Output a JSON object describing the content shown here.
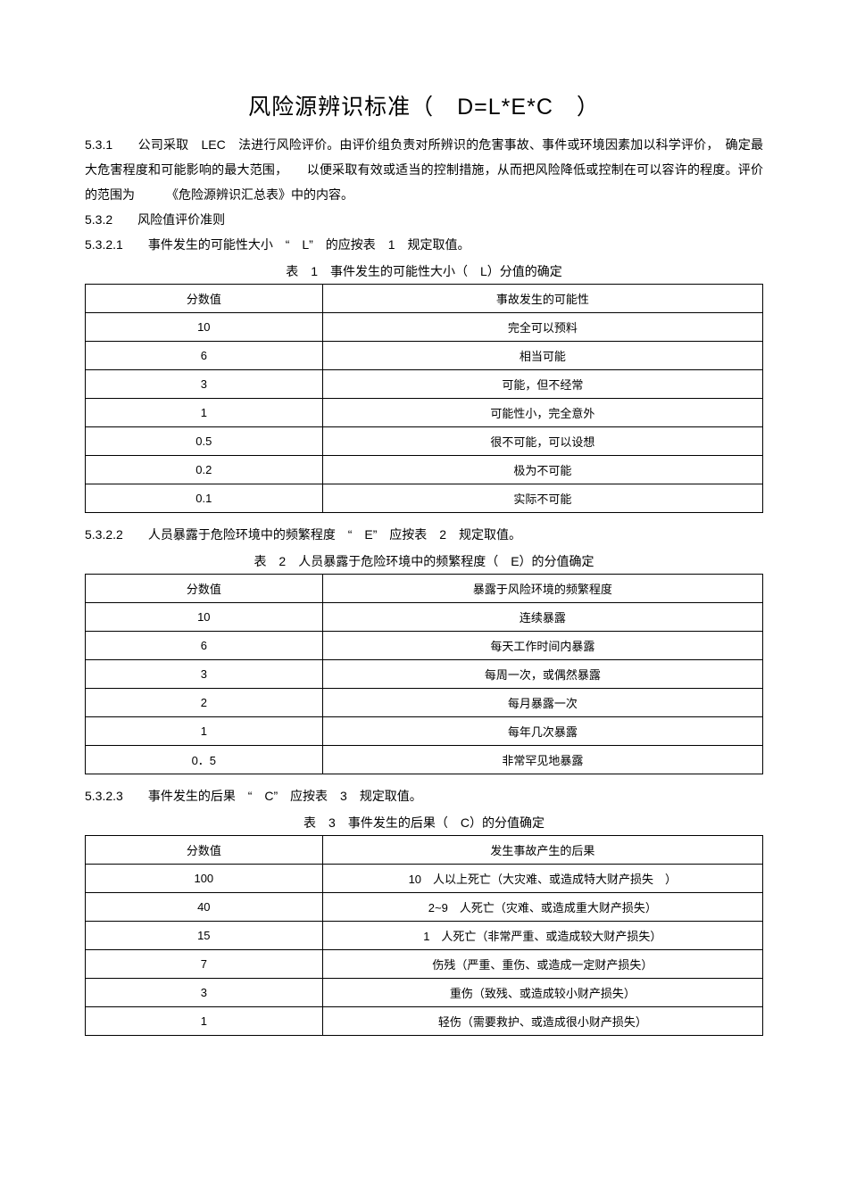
{
  "title": "风险源辨识标准（　D=L*E*C　）",
  "intro_531": "5.3.1　　公司采取　LEC　法进行风险评价。由评价组负责对所辨识的危害事故、事件或环境因素加以科学评价，　确定最大危害程度和可能影响的最大范围，　　以便采取有效或适当的控制措施，从而把风险降低或控制在可以容许的程度。评价的范围为　　　《危险源辨识汇总表》中的内容。",
  "line_532": "5.3.2　　风险值评价准则",
  "line_5321": "5.3.2.1　　事件发生的可能性大小 “　L” 的应按表　1　规定取值。",
  "table1": {
    "caption": "表　1　事件发生的可能性大小（　L）分值的确定",
    "headers": [
      "分数值",
      "事故发生的可能性"
    ],
    "rows": [
      [
        "10",
        "完全可以预料"
      ],
      [
        "6",
        "相当可能"
      ],
      [
        "3",
        "可能，但不经常"
      ],
      [
        "1",
        "可能性小，完全意外"
      ],
      [
        "0.5",
        "很不可能，可以设想"
      ],
      [
        "0.2",
        "极为不可能"
      ],
      [
        "0.1",
        "实际不可能"
      ]
    ]
  },
  "line_5322": "5.3.2.2　　人员暴露于危险环境中的频繁程度 “　E” 应按表　2　规定取值。",
  "table2": {
    "caption": "表　2　人员暴露于危险环境中的频繁程度（　E）的分值确定",
    "headers": [
      "分数值",
      "暴露于风险环境的频繁程度"
    ],
    "rows": [
      [
        "10",
        "连续暴露"
      ],
      [
        "6",
        "每天工作时间内暴露"
      ],
      [
        "3",
        "每周一次，或偶然暴露"
      ],
      [
        "2",
        "每月暴露一次"
      ],
      [
        "1",
        "每年几次暴露"
      ],
      [
        "0．5",
        "非常罕见地暴露"
      ]
    ]
  },
  "line_5323": "5.3.2.3　　事件发生的后果 “　C” 应按表　3　规定取值。",
  "table3": {
    "caption": "表　3　事件发生的后果（　C）的分值确定",
    "headers": [
      "分数值",
      "发生事故产生的后果"
    ],
    "rows": [
      [
        "100",
        "10　人以上死亡（大灾难、或造成特大财产损失　）"
      ],
      [
        "40",
        "2~9　人死亡（灾难、或造成重大财产损失）"
      ],
      [
        "15",
        "1　人死亡（非常严重、或造成较大财产损失）"
      ],
      [
        "7",
        "伤残（严重、重伤、或造成一定财产损失）"
      ],
      [
        "3",
        "重伤（致残、或造成较小财产损失）"
      ],
      [
        "1",
        "轻伤（需要救护、或造成很小财产损失）"
      ]
    ]
  }
}
